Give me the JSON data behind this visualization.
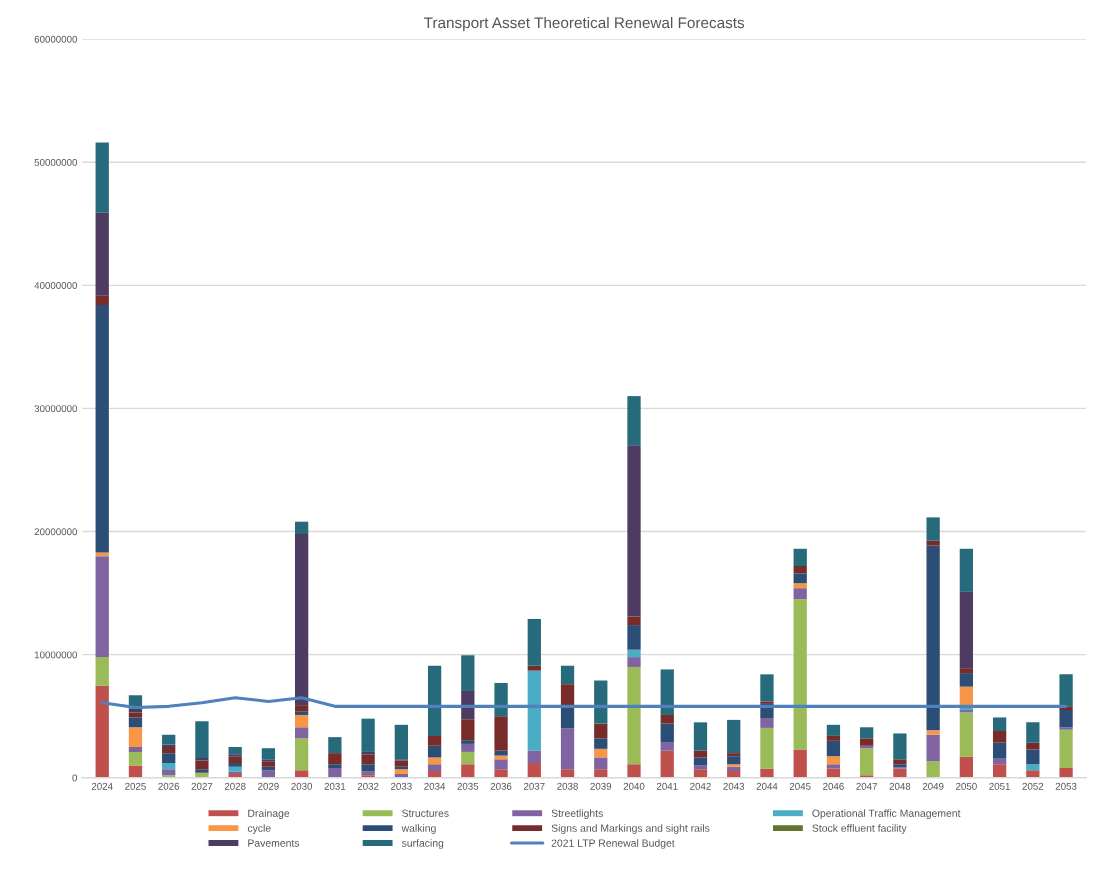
{
  "chart_data": {
    "type": "bar",
    "title": "Transport Asset Theoretical Renewal Forecasts",
    "stacked": true,
    "categories": [
      "2024",
      "2025",
      "2026",
      "2027",
      "2028",
      "2029",
      "2030",
      "2031",
      "2032",
      "2033",
      "2034",
      "2035",
      "2036",
      "2037",
      "2038",
      "2039",
      "2040",
      "2041",
      "2042",
      "2043",
      "2044",
      "2045",
      "2046",
      "2047",
      "2048",
      "2049",
      "2050",
      "2051",
      "2052",
      "2053"
    ],
    "series": [
      {
        "name": "Drainage",
        "color": "#c0504d",
        "values": [
          7500000,
          1000000,
          0,
          0,
          300000,
          0,
          600000,
          0,
          200000,
          0,
          550000,
          1100000,
          700000,
          1200000,
          700000,
          700000,
          1100000,
          2200000,
          700000,
          550000,
          750000,
          2300000,
          750000,
          200000,
          750000,
          0,
          1700000,
          1100000,
          600000,
          800000
        ]
      },
      {
        "name": "Structures",
        "color": "#9bbb59",
        "values": [
          2300000,
          1100000,
          200000,
          400000,
          0,
          0,
          2600000,
          0,
          0,
          0,
          0,
          1000000,
          0,
          0,
          0,
          0,
          7900000,
          0,
          0,
          0,
          3300000,
          12200000,
          0,
          2200000,
          0,
          1350000,
          3600000,
          0,
          0,
          3100000
        ]
      },
      {
        "name": "Streetlights",
        "color": "#8064a2",
        "values": [
          8200000,
          400000,
          500000,
          0,
          200000,
          600000,
          900000,
          800000,
          300000,
          300000,
          550000,
          650000,
          800000,
          1000000,
          3300000,
          950000,
          800000,
          700000,
          300000,
          350000,
          800000,
          900000,
          350000,
          200000,
          100000,
          2150000,
          200000,
          450000,
          0,
          200000
        ]
      },
      {
        "name": "Operational Traffic Management",
        "color": "#4bacc6",
        "values": [
          0,
          0,
          500000,
          0,
          400000,
          0,
          0,
          0,
          0,
          0,
          0,
          0,
          0,
          6500000,
          0,
          0,
          600000,
          0,
          0,
          0,
          0,
          0,
          0,
          0,
          0,
          0,
          300000,
          0,
          500000,
          0
        ]
      },
      {
        "name": "cycle",
        "color": "#f79646",
        "values": [
          300000,
          1600000,
          0,
          0,
          0,
          0,
          1000000,
          0,
          0,
          400000,
          550000,
          0,
          300000,
          0,
          0,
          700000,
          0,
          0,
          0,
          200000,
          0,
          400000,
          650000,
          0,
          0,
          350000,
          1600000,
          0,
          0,
          0
        ]
      },
      {
        "name": "walking",
        "color": "#2c4d75",
        "values": [
          20100000,
          800000,
          800000,
          300000,
          300000,
          300000,
          300000,
          300000,
          600000,
          200000,
          950000,
          300000,
          400000,
          0,
          1900000,
          850000,
          2000000,
          1500000,
          650000,
          650000,
          1150000,
          800000,
          1250000,
          0,
          250000,
          15000000,
          1100000,
          1300000,
          1200000,
          1400000
        ]
      },
      {
        "name": "Signs and Markings and sight rails",
        "color": "#772c2a",
        "values": [
          800000,
          400000,
          500000,
          700000,
          500000,
          400000,
          500000,
          900000,
          800000,
          500000,
          800000,
          1700000,
          2800000,
          400000,
          1700000,
          1200000,
          700000,
          700000,
          550000,
          250000,
          200000,
          600000,
          400000,
          600000,
          400000,
          400000,
          400000,
          950000,
          550000,
          300000
        ]
      },
      {
        "name": "Stock effluent facility",
        "color": "#5f7530",
        "values": [
          null,
          null,
          null,
          null,
          null,
          null,
          null,
          null,
          null,
          null,
          null,
          null,
          null,
          null,
          null,
          null,
          null,
          null,
          null,
          null,
          null,
          null,
          null,
          null,
          null,
          null,
          null,
          null,
          null,
          null
        ]
      },
      {
        "name": "Pavements",
        "color": "#4d3b62",
        "values": [
          6700000,
          300000,
          200000,
          200000,
          200000,
          200000,
          13900000,
          0,
          200000,
          100000,
          0,
          2300000,
          0,
          0,
          0,
          0,
          13900000,
          0,
          0,
          0,
          0,
          0,
          0,
          0,
          0,
          0,
          6200000,
          0,
          0,
          0
        ]
      },
      {
        "name": "surfacing",
        "color": "#276a7c",
        "values": [
          5700000,
          1100000,
          800000,
          3000000,
          600000,
          900000,
          1000000,
          1300000,
          2700000,
          2800000,
          5700000,
          2900000,
          2700000,
          3800000,
          1500000,
          3500000,
          4000000,
          3700000,
          2300000,
          2700000,
          2200000,
          1400000,
          900000,
          900000,
          2100000,
          1900000,
          3500000,
          1100000,
          1650000,
          2600000
        ]
      },
      {
        "name": "2021 LTP Renewal Budget",
        "type": "line",
        "color": "#4f81bd",
        "values": [
          6100000,
          5700000,
          5800000,
          6100000,
          6500000,
          6200000,
          6500000,
          5800000,
          5800000,
          5800000,
          5800000,
          5800000,
          5800000,
          5800000,
          5800000,
          5800000,
          5800000,
          5800000,
          5800000,
          5800000,
          5800000,
          5800000,
          5800000,
          5800000,
          5800000,
          5800000,
          5800000,
          5800000,
          5800000,
          5800000
        ]
      }
    ],
    "ylim": [
      0,
      60000000
    ],
    "yticks": [
      0,
      10000000,
      20000000,
      30000000,
      40000000,
      50000000,
      60000000
    ],
    "grid": "y",
    "legend": "bottom"
  }
}
